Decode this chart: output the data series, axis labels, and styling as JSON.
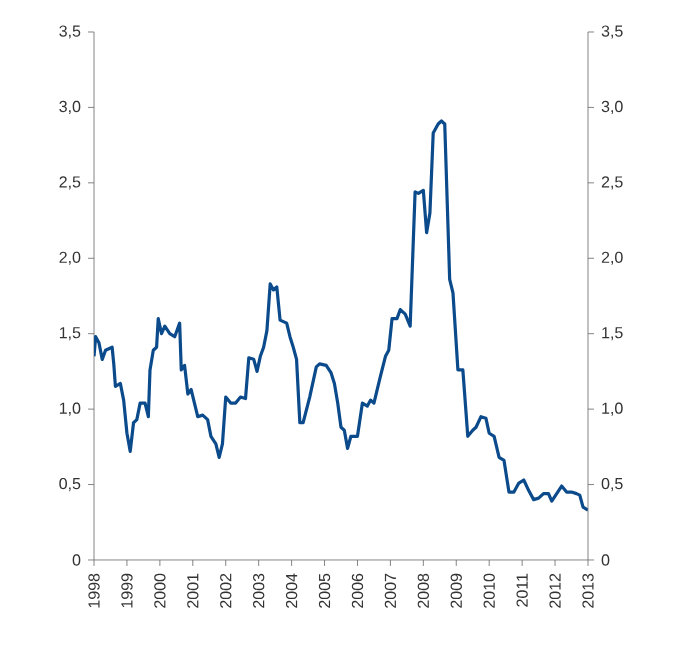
{
  "chart_data": {
    "type": "line",
    "xlim": [
      1998,
      2013
    ],
    "xticks": [
      1998,
      1999,
      2000,
      2001,
      2002,
      2003,
      2004,
      2005,
      2006,
      2007,
      2008,
      2009,
      2010,
      2011,
      2012,
      2013
    ],
    "ylim": [
      0,
      3.5
    ],
    "yticks": [
      0,
      {
        "value": 0.5,
        "label": "0,5"
      },
      {
        "value": 1,
        "label": "1,0"
      },
      {
        "value": 1.5,
        "label": "1,5"
      },
      {
        "value": 2,
        "label": "2,0"
      },
      {
        "value": 2.5,
        "label": "2,5"
      },
      {
        "value": 3,
        "label": "3,0"
      },
      {
        "value": 3.5,
        "label": "3,5"
      }
    ],
    "y2lim": [
      0,
      3.5
    ],
    "y2ticks": [
      0,
      {
        "value": 0.5,
        "label": "0,5"
      },
      {
        "value": 1,
        "label": "1,0"
      },
      {
        "value": 1.5,
        "label": "1,5"
      },
      {
        "value": 2,
        "label": "2,0"
      },
      {
        "value": 2.5,
        "label": "2,5"
      },
      {
        "value": 3,
        "label": "3,0"
      },
      {
        "value": 3.5,
        "label": "3,5"
      }
    ],
    "grid": false,
    "marker": "none",
    "line_style": "solid",
    "x": [
      1998.0,
      1998.05,
      1998.15,
      1998.25,
      1998.35,
      1998.55,
      1998.6,
      1998.65,
      1998.8,
      1998.9,
      1999.0,
      1999.1,
      1999.2,
      1999.3,
      1999.4,
      1999.55,
      1999.65,
      1999.7,
      1999.8,
      1999.9,
      1999.95,
      2000.05,
      2000.15,
      2000.3,
      2000.45,
      2000.6,
      2000.65,
      2000.75,
      2000.85,
      2000.95,
      2001.05,
      2001.15,
      2001.3,
      2001.45,
      2001.55,
      2001.7,
      2001.8,
      2001.9,
      2002.0,
      2002.15,
      2002.3,
      2002.45,
      2002.6,
      2002.7,
      2002.85,
      2002.95,
      2003.05,
      2003.15,
      2003.25,
      2003.35,
      2003.45,
      2003.55,
      2003.65,
      2003.85,
      2003.95,
      2004.05,
      2004.15,
      2004.25,
      2004.35,
      2004.55,
      2004.75,
      2004.85,
      2005.05,
      2005.2,
      2005.3,
      2005.4,
      2005.5,
      2005.6,
      2005.7,
      2005.8,
      2006.0,
      2006.15,
      2006.3,
      2006.4,
      2006.5,
      2006.7,
      2006.85,
      2006.95,
      2007.05,
      2007.2,
      2007.3,
      2007.45,
      2007.6,
      2007.75,
      2007.85,
      2008.0,
      2008.1,
      2008.2,
      2008.3,
      2008.45,
      2008.55,
      2008.65,
      2008.8,
      2008.9,
      2009.05,
      2009.2,
      2009.35,
      2009.5,
      2009.6,
      2009.75,
      2009.9,
      2010.0,
      2010.15,
      2010.3,
      2010.45,
      2010.6,
      2010.75,
      2010.9,
      2011.05,
      2011.2,
      2011.35,
      2011.5,
      2011.65,
      2011.8,
      2011.9,
      2012.05,
      2012.2,
      2012.35,
      2012.5,
      2012.65,
      2012.75,
      2012.85,
      2013.0
    ],
    "series": [
      {
        "color": "#0b4a8b",
        "values": [
          1.35,
          1.48,
          1.44,
          1.33,
          1.39,
          1.41,
          1.3,
          1.15,
          1.17,
          1.06,
          0.84,
          0.72,
          0.91,
          0.93,
          1.04,
          1.04,
          0.95,
          1.26,
          1.39,
          1.41,
          1.6,
          1.5,
          1.55,
          1.5,
          1.48,
          1.57,
          1.26,
          1.29,
          1.1,
          1.13,
          1.04,
          0.95,
          0.96,
          0.93,
          0.82,
          0.77,
          0.68,
          0.77,
          1.08,
          1.04,
          1.04,
          1.08,
          1.07,
          1.34,
          1.33,
          1.25,
          1.35,
          1.41,
          1.52,
          1.83,
          1.79,
          1.81,
          1.59,
          1.57,
          1.48,
          1.41,
          1.33,
          0.91,
          0.91,
          1.08,
          1.28,
          1.3,
          1.29,
          1.24,
          1.17,
          1.04,
          0.88,
          0.86,
          0.74,
          0.82,
          0.82,
          1.04,
          1.02,
          1.06,
          1.04,
          1.22,
          1.35,
          1.39,
          1.6,
          1.6,
          1.66,
          1.63,
          1.55,
          2.44,
          2.43,
          2.45,
          2.17,
          2.3,
          2.83,
          2.89,
          2.91,
          2.89,
          1.86,
          1.77,
          1.26,
          1.26,
          0.82,
          0.86,
          0.88,
          0.95,
          0.94,
          0.84,
          0.82,
          0.68,
          0.66,
          0.45,
          0.45,
          0.51,
          0.53,
          0.46,
          0.4,
          0.41,
          0.44,
          0.44,
          0.39,
          0.44,
          0.49,
          0.45,
          0.45,
          0.44,
          0.43,
          0.35,
          0.33
        ]
      }
    ]
  }
}
